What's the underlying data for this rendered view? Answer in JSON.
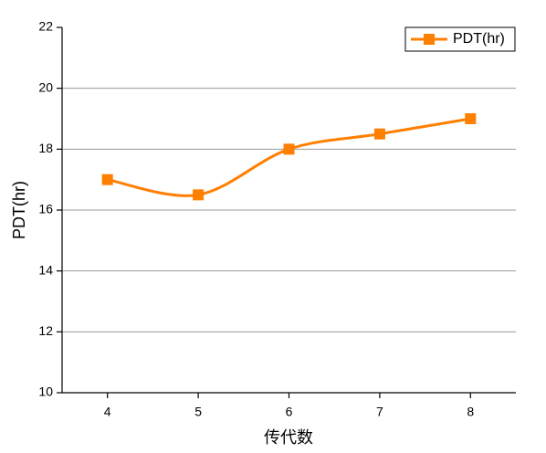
{
  "chart_data": {
    "type": "line",
    "x_label": "传代数",
    "y_label": "PDT(hr)",
    "x": [
      4,
      5,
      6,
      7,
      8
    ],
    "series": [
      {
        "name": "PDT(hr)",
        "color": "#ff7f00",
        "values": [
          17,
          16.5,
          18,
          18.5,
          19
        ]
      }
    ],
    "xlim": [
      3.5,
      8.5
    ],
    "xticks": [
      4,
      5,
      6,
      7,
      8
    ],
    "ylim": [
      10,
      22
    ],
    "yticks": [
      10,
      12,
      14,
      16,
      18,
      20,
      22
    ],
    "grid": true,
    "smooth": true,
    "marker": "square",
    "legend": "top-right"
  }
}
